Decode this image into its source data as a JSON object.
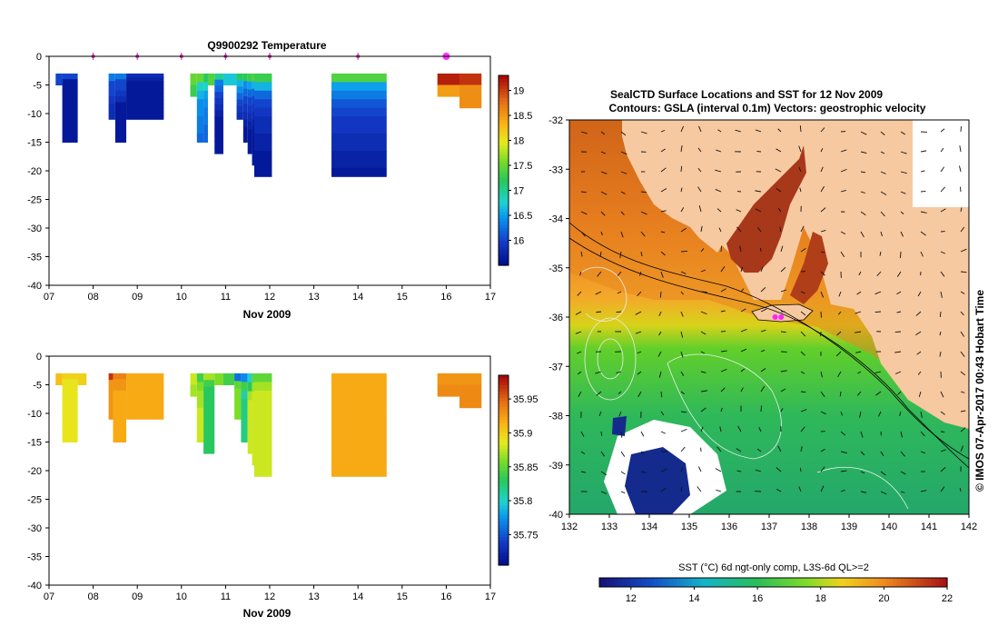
{
  "chart_data": [
    {
      "type": "heatmap",
      "title": "Q9900292  Temperature",
      "xlabel": "Nov 2009",
      "x_ticks": [
        "07",
        "08",
        "09",
        "10",
        "11",
        "12",
        "13",
        "14",
        "15",
        "16",
        "17"
      ],
      "xlim": [
        7,
        17
      ],
      "ylim": [
        -40,
        0
      ],
      "y_ticks": [
        "0",
        "-5",
        "-10",
        "-15",
        "-20",
        "-25",
        "-30",
        "-35",
        "-40"
      ],
      "colorbar": {
        "min": 15.5,
        "max": 19.3,
        "ticks": [
          "16",
          "16.5",
          "17",
          "17.5",
          "18",
          "18.5",
          "19"
        ]
      },
      "profile_markers": [
        8.0,
        9.0,
        10.0,
        11.0,
        12.0,
        14.0,
        16.0
      ],
      "highlight_marker": 16.0,
      "columns": [
        {
          "x0": 7.15,
          "x1": 7.3,
          "bottom": -5,
          "values": [
            16.0
          ]
        },
        {
          "x0": 7.3,
          "x1": 7.65,
          "bottom": -15,
          "values": [
            16.0,
            15.6,
            15.6,
            15.6,
            15.6,
            15.6,
            15.6,
            15.6,
            15.6,
            15.6,
            15.6,
            15.6
          ]
        },
        {
          "x0": 8.35,
          "x1": 8.5,
          "bottom": -11,
          "values": [
            16.3,
            16.0,
            16.0,
            15.9,
            15.8,
            15.8
          ]
        },
        {
          "x0": 8.5,
          "x1": 8.75,
          "bottom": -15,
          "values": [
            16.3,
            16.0,
            16.0,
            15.9,
            15.8,
            15.6,
            15.6,
            15.6,
            15.6,
            15.6,
            15.6,
            15.6
          ]
        },
        {
          "x0": 8.75,
          "x1": 9.6,
          "bottom": -11,
          "values": [
            15.8,
            15.7,
            15.6,
            15.6,
            15.6,
            15.6,
            15.6,
            15.6,
            15.6,
            15.6,
            15.6,
            15.6
          ]
        },
        {
          "x0": 10.2,
          "x1": 10.35,
          "bottom": -7,
          "values": [
            17.5,
            17.3
          ]
        },
        {
          "x0": 10.35,
          "x1": 10.5,
          "bottom": -15,
          "values": [
            17.5,
            16.8,
            16.6,
            16.4,
            16.4,
            16.3,
            16.3,
            16.2
          ]
        },
        {
          "x0": 10.5,
          "x1": 10.6,
          "bottom": -15,
          "values": [
            17.2,
            16.8,
            16.5,
            16.4,
            16.3,
            16.3,
            16.2,
            16.2
          ]
        },
        {
          "x0": 10.6,
          "x1": 10.75,
          "bottom": -5,
          "values": [
            17.4
          ]
        },
        {
          "x0": 10.75,
          "x1": 10.95,
          "bottom": -17,
          "values": [
            17.0,
            16.3,
            16.2,
            16.0,
            15.9,
            15.8,
            15.7,
            15.6,
            15.6,
            15.6,
            15.6,
            15.6,
            15.6
          ]
        },
        {
          "x0": 10.95,
          "x1": 11.25,
          "bottom": -5,
          "values": [
            16.7
          ]
        },
        {
          "x0": 11.25,
          "x1": 11.4,
          "bottom": -11,
          "values": [
            17.2,
            16.6,
            16.4,
            16.2,
            16.0,
            15.9,
            15.8
          ]
        },
        {
          "x0": 11.4,
          "x1": 11.5,
          "bottom": -15,
          "values": [
            17.2,
            16.4,
            16.2,
            16.0,
            15.9,
            15.8,
            15.7,
            15.6,
            15.6
          ]
        },
        {
          "x0": 11.5,
          "x1": 11.6,
          "bottom": -17,
          "values": [
            17.3,
            16.5,
            16.2,
            16.0,
            15.9,
            15.8,
            15.7,
            15.6,
            15.6,
            15.6
          ]
        },
        {
          "x0": 11.6,
          "x1": 11.65,
          "bottom": -19,
          "values": [
            17.4,
            16.6,
            16.2,
            16.0,
            15.9,
            15.8,
            15.7,
            15.6,
            15.6,
            15.6,
            15.6,
            15.6
          ]
        },
        {
          "x0": 11.65,
          "x1": 12.05,
          "bottom": -21,
          "values": [
            17.3,
            16.6,
            16.2,
            16.0,
            15.9,
            15.8,
            15.8,
            15.7,
            15.7,
            15.6,
            15.6,
            15.6
          ]
        },
        {
          "x0": 13.4,
          "x1": 14.65,
          "bottom": -21,
          "values": [
            17.4,
            16.5,
            16.3,
            16.1,
            16.0,
            15.9,
            15.9,
            15.8,
            15.8,
            15.7,
            15.7,
            15.6
          ]
        },
        {
          "x0": 15.8,
          "x1": 16.3,
          "bottom": -7,
          "values": [
            19.2,
            18.5
          ]
        },
        {
          "x0": 16.3,
          "x1": 16.8,
          "bottom": -9,
          "values": [
            19.1,
            18.6,
            18.6
          ]
        }
      ]
    },
    {
      "type": "heatmap",
      "title": "",
      "xlabel": "Nov 2009",
      "x_ticks": [
        "07",
        "08",
        "09",
        "10",
        "11",
        "12",
        "13",
        "14",
        "15",
        "16",
        "17"
      ],
      "xlim": [
        7,
        17
      ],
      "ylim": [
        -40,
        0
      ],
      "y_ticks": [
        "0",
        "-5",
        "-10",
        "-15",
        "-20",
        "-25",
        "-30",
        "-35",
        "-40"
      ],
      "colorbar": {
        "min": 35.705,
        "max": 35.985,
        "ticks": [
          "35.75",
          "35.8",
          "35.85",
          "35.9",
          "35.95"
        ]
      },
      "columns": [
        {
          "x0": 7.15,
          "x1": 7.3,
          "bottom": -5,
          "values": [
            35.91
          ]
        },
        {
          "x0": 7.3,
          "x1": 7.65,
          "bottom": -15,
          "values": [
            35.9,
            35.89,
            35.89,
            35.89,
            35.89,
            35.89,
            35.89,
            35.89,
            35.89,
            35.89,
            35.89,
            35.89
          ]
        },
        {
          "x0": 7.65,
          "x1": 7.85,
          "bottom": -5,
          "values": [
            35.9
          ]
        },
        {
          "x0": 8.35,
          "x1": 8.45,
          "bottom": -11,
          "values": [
            35.97,
            35.93,
            35.93,
            35.93,
            35.93,
            35.93,
            35.93
          ]
        },
        {
          "x0": 8.45,
          "x1": 8.75,
          "bottom": -15,
          "values": [
            35.94,
            35.93,
            35.93,
            35.92,
            35.92,
            35.92,
            35.92,
            35.92,
            35.92,
            35.92,
            35.92,
            35.92
          ]
        },
        {
          "x0": 8.75,
          "x1": 9.6,
          "bottom": -11,
          "values": [
            35.92,
            35.92,
            35.92,
            35.92,
            35.92,
            35.92,
            35.92,
            35.92
          ]
        },
        {
          "x0": 10.2,
          "x1": 10.35,
          "bottom": -7,
          "values": [
            35.88,
            35.87
          ]
        },
        {
          "x0": 10.35,
          "x1": 10.5,
          "bottom": -15,
          "values": [
            35.84,
            35.86,
            35.87,
            35.87,
            35.88,
            35.88,
            35.88,
            35.88
          ]
        },
        {
          "x0": 10.5,
          "x1": 10.75,
          "bottom": -17,
          "values": [
            35.87,
            35.84,
            35.83,
            35.83,
            35.83,
            35.83,
            35.83,
            35.83,
            35.83,
            35.83,
            35.83,
            35.83
          ]
        },
        {
          "x0": 10.75,
          "x1": 10.95,
          "bottom": -5,
          "values": [
            35.86
          ]
        },
        {
          "x0": 10.95,
          "x1": 11.2,
          "bottom": -5,
          "values": [
            35.84
          ]
        },
        {
          "x0": 11.2,
          "x1": 11.35,
          "bottom": -11,
          "values": [
            35.76,
            35.85,
            35.86,
            35.86,
            35.86,
            35.86
          ]
        },
        {
          "x0": 11.35,
          "x1": 11.5,
          "bottom": -15,
          "values": [
            35.77,
            35.84,
            35.81,
            35.82,
            35.82,
            35.82,
            35.82,
            35.82
          ]
        },
        {
          "x0": 11.5,
          "x1": 11.6,
          "bottom": -17,
          "values": [
            35.8,
            35.83,
            35.87,
            35.88,
            35.88,
            35.88,
            35.88,
            35.88,
            35.88
          ]
        },
        {
          "x0": 11.6,
          "x1": 11.65,
          "bottom": -19,
          "values": [
            35.85,
            35.87,
            35.88,
            35.88,
            35.88,
            35.88,
            35.88,
            35.88,
            35.88,
            35.88
          ]
        },
        {
          "x0": 11.65,
          "x1": 12.05,
          "bottom": -21,
          "values": [
            35.85,
            35.87,
            35.88,
            35.88,
            35.88,
            35.88,
            35.88,
            35.88,
            35.88,
            35.88,
            35.88,
            35.88
          ]
        },
        {
          "x0": 13.4,
          "x1": 14.65,
          "bottom": -21,
          "values": [
            35.92,
            35.92,
            35.92,
            35.92,
            35.92,
            35.92,
            35.92,
            35.92,
            35.92,
            35.92,
            35.92,
            35.92
          ]
        },
        {
          "x0": 15.8,
          "x1": 16.3,
          "bottom": -7,
          "values": [
            35.93,
            35.935
          ]
        },
        {
          "x0": 16.3,
          "x1": 16.8,
          "bottom": -9,
          "values": [
            35.93,
            35.935,
            35.935
          ]
        }
      ]
    },
    {
      "type": "heatmap",
      "title": "SealCTD Surface Locations and SST for 12 Nov 2009",
      "subtitle": "Contours: GSLA (interval 0.1m) Vectors: geostrophic velocity",
      "xlabel": "",
      "ylabel": "",
      "xlim": [
        132,
        142
      ],
      "ylim": [
        -40,
        -32
      ],
      "x_ticks": [
        "132",
        "133",
        "134",
        "135",
        "136",
        "137",
        "138",
        "139",
        "140",
        "141",
        "142"
      ],
      "y_ticks": [
        "-32",
        "-33",
        "-34",
        "-35",
        "-36",
        "-37",
        "-38",
        "-39",
        "-40"
      ],
      "colorbar": {
        "min": 11,
        "max": 22,
        "label": "SST (°C) 6d ngt-only comp, L3S-6d QL>=2",
        "ticks": [
          "12",
          "14",
          "16",
          "18",
          "20",
          "22"
        ]
      },
      "seal_locations": [
        [
          137.15,
          -36.0
        ],
        [
          137.3,
          -36.0
        ]
      ],
      "side_label": "© IMOS 07-Apr-2017 00:43 Hobart Time"
    }
  ]
}
